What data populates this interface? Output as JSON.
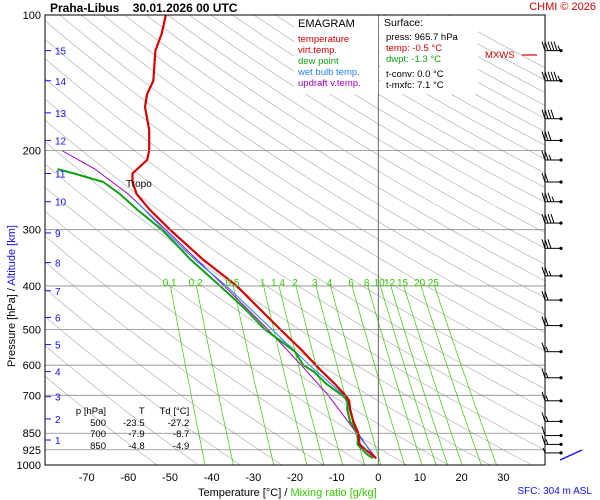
{
  "header": {
    "station": "Praha-Libus",
    "datetime": "30.01.2026 00 UTC",
    "credit": "CHMI © 2026"
  },
  "legend": {
    "title": "EMAGRAM",
    "items": [
      {
        "label": "temperature",
        "color": "#d40000"
      },
      {
        "label": "virt.temp.",
        "color": "#d40000"
      },
      {
        "label": "dew point",
        "color": "#10a010"
      },
      {
        "label": "wet bulb temp.",
        "color": "#2080ff"
      },
      {
        "label": "updraft v.temp.",
        "color": "#a000c0"
      }
    ]
  },
  "surface": {
    "title": "Surface:",
    "press": "press: 965.7 hPa",
    "temp": "temp: -0.5 °C",
    "dwpt": "dwpt: -1.3 °C",
    "tconv": "t-conv: 0.0 °C",
    "tmxfc": "t-mxfc: 7.1 °C"
  },
  "annotations": {
    "tropo": "Tropo",
    "mxws": "MXWS",
    "sfc": "SFC: 304 m ASL"
  },
  "axis_titles": {
    "x_main": "Temperature [°C]",
    "x_sep": " / ",
    "x_mix": "Mixing ratio [g/kg]",
    "y_main": "Pressure [hPa] / ",
    "y_alt": "Altitude [km]"
  },
  "levels_table": {
    "headers": [
      "p [hPa]",
      "T",
      "Td [°C]"
    ],
    "rows": [
      [
        "500",
        "-23.5",
        "-27.2"
      ],
      [
        "700",
        "-7.9",
        "-8.7"
      ],
      [
        "850",
        "-4.8",
        "-4.9"
      ]
    ]
  },
  "colors": {
    "temperature": "#d40000",
    "dewpoint": "#10a010",
    "wetbulb": "#2080ff",
    "updraft": "#a000c0",
    "mixing": "#33cc00",
    "grid": "#888888",
    "dryadiabat": "#b4b4b4",
    "altitude": "#1010ff"
  },
  "chart_data": {
    "type": "line",
    "title": "Praha-Libus 30.01.2026 00 UTC",
    "xlabel": "Temperature [°C]",
    "ylabel": "Pressure [hPa]",
    "xlim": [
      -80,
      40
    ],
    "ylim": [
      1000,
      100
    ],
    "y_scale": "log",
    "x_ticks": [
      -70,
      -60,
      -50,
      -40,
      -30,
      -20,
      -10,
      0,
      10,
      20,
      30
    ],
    "y_ticks": [
      100,
      200,
      300,
      400,
      500,
      600,
      700,
      850,
      925,
      1000
    ],
    "altitude_ticks": [
      {
        "km": 1,
        "p": 880
      },
      {
        "km": 2,
        "p": 790
      },
      {
        "km": 3,
        "p": 705
      },
      {
        "km": 4,
        "p": 620
      },
      {
        "km": 5,
        "p": 540
      },
      {
        "km": 6,
        "p": 470
      },
      {
        "km": 7,
        "p": 410
      },
      {
        "km": 8,
        "p": 355
      },
      {
        "km": 9,
        "p": 305
      },
      {
        "km": 10,
        "p": 260
      },
      {
        "km": 11,
        "p": 225
      },
      {
        "km": 12,
        "p": 190
      },
      {
        "km": 13,
        "p": 165
      },
      {
        "km": 14,
        "p": 140
      },
      {
        "km": 15,
        "p": 120
      }
    ],
    "mixing_ratio_labels": [
      "0.1",
      "0.2",
      "0.5",
      "1",
      "1.4",
      "2",
      "3",
      "4",
      "6",
      "8",
      "10",
      "12",
      "15",
      "20",
      "25"
    ],
    "mixing_ratio_values": [
      0.1,
      0.2,
      0.5,
      1,
      1.4,
      2,
      3,
      4,
      6,
      8,
      10,
      12,
      15,
      20,
      25
    ],
    "series": [
      {
        "name": "temperature",
        "points": [
          [
            966,
            -0.5
          ],
          [
            950,
            -1.5
          ],
          [
            925,
            -3.0
          ],
          [
            900,
            -4.5
          ],
          [
            850,
            -4.8
          ],
          [
            800,
            -6.0
          ],
          [
            750,
            -6.8
          ],
          [
            720,
            -7.0
          ],
          [
            700,
            -7.9
          ],
          [
            660,
            -10.5
          ],
          [
            620,
            -13.5
          ],
          [
            600,
            -15.0
          ],
          [
            560,
            -18.0
          ],
          [
            500,
            -23.5
          ],
          [
            450,
            -28.5
          ],
          [
            400,
            -34.0
          ],
          [
            350,
            -42.0
          ],
          [
            300,
            -50.0
          ],
          [
            270,
            -55.0
          ],
          [
            250,
            -58.0
          ],
          [
            235,
            -59.0
          ],
          [
            225,
            -59.0
          ],
          [
            210,
            -55.5
          ],
          [
            200,
            -55.0
          ],
          [
            180,
            -55.0
          ],
          [
            160,
            -56.0
          ],
          [
            150,
            -55.5
          ],
          [
            140,
            -54.0
          ],
          [
            120,
            -53.5
          ],
          [
            110,
            -52.0
          ],
          [
            100,
            -51.0
          ]
        ]
      },
      {
        "name": "dew point",
        "points": [
          [
            966,
            -1.3
          ],
          [
            950,
            -2.5
          ],
          [
            925,
            -3.8
          ],
          [
            900,
            -5.0
          ],
          [
            850,
            -4.9
          ],
          [
            800,
            -6.8
          ],
          [
            750,
            -7.5
          ],
          [
            720,
            -7.3
          ],
          [
            700,
            -8.7
          ],
          [
            660,
            -12.5
          ],
          [
            620,
            -15.5
          ],
          [
            600,
            -18.0
          ],
          [
            560,
            -20.0
          ],
          [
            500,
            -27.2
          ],
          [
            450,
            -32.0
          ],
          [
            400,
            -38.0
          ],
          [
            350,
            -45.0
          ],
          [
            320,
            -49.0
          ],
          [
            300,
            -52.0
          ],
          [
            270,
            -58.0
          ],
          [
            250,
            -62.0
          ],
          [
            235,
            -66.0
          ],
          [
            225,
            -73.0
          ],
          [
            220,
            -77.0
          ]
        ]
      },
      {
        "name": "wet bulb temp.",
        "points": [
          [
            966,
            -0.9
          ],
          [
            850,
            -4.8
          ],
          [
            700,
            -8.3
          ],
          [
            600,
            -16.5
          ],
          [
            500,
            -25.5
          ],
          [
            400,
            -36.5
          ],
          [
            350,
            -44.0
          ],
          [
            300,
            -51.5
          ],
          [
            260,
            -58.0
          ]
        ]
      },
      {
        "name": "updraft v.temp.",
        "points": [
          [
            966,
            -0.5
          ],
          [
            850,
            -5.2
          ],
          [
            700,
            -12.0
          ],
          [
            600,
            -18.5
          ],
          [
            500,
            -26.5
          ],
          [
            400,
            -37.0
          ],
          [
            300,
            -51.0
          ],
          [
            250,
            -60.0
          ],
          [
            220,
            -68.0
          ],
          [
            200,
            -76.0
          ]
        ]
      }
    ]
  },
  "wind_barbs": [
    {
      "p": 120,
      "kt": 55
    },
    {
      "p": 140,
      "kt": 55
    },
    {
      "p": 170,
      "kt": 40
    },
    {
      "p": 190,
      "kt": 30
    },
    {
      "p": 210,
      "kt": 25
    },
    {
      "p": 235,
      "kt": 20
    },
    {
      "p": 260,
      "kt": 35
    },
    {
      "p": 290,
      "kt": 40
    },
    {
      "p": 330,
      "kt": 30
    },
    {
      "p": 380,
      "kt": 25
    },
    {
      "p": 430,
      "kt": 20
    },
    {
      "p": 490,
      "kt": 20
    },
    {
      "p": 560,
      "kt": 15
    },
    {
      "p": 640,
      "kt": 15
    },
    {
      "p": 720,
      "kt": 15
    },
    {
      "p": 800,
      "kt": 15
    },
    {
      "p": 860,
      "kt": 10
    },
    {
      "p": 900,
      "kt": 15
    },
    {
      "p": 940,
      "kt": 5
    }
  ]
}
